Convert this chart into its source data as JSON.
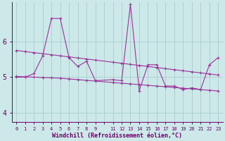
{
  "xlabel": "Windchill (Refroidissement éolien,°C)",
  "bg_color": "#cce8e8",
  "line_color": "#993399",
  "grid_color": "#aacccc",
  "axis_color": "#660066",
  "tick_color": "#660066",
  "xlim": [
    -0.5,
    23.5
  ],
  "ylim": [
    3.75,
    7.1
  ],
  "yticks": [
    4,
    5,
    6
  ],
  "xtick_labels": [
    "0",
    "1",
    "2",
    "3",
    "4",
    "5",
    "6",
    "7",
    "8",
    "9",
    "",
    "11",
    "12",
    "13",
    "14",
    "15",
    "16",
    "17",
    "18",
    "19",
    "20",
    "21",
    "22",
    "23"
  ],
  "line1_x": [
    0,
    1,
    2,
    3,
    4,
    5,
    6,
    7,
    8,
    9,
    11,
    12,
    13,
    14,
    15,
    16,
    17,
    18,
    19,
    20,
    21,
    22,
    23
  ],
  "line1_y": [
    5.0,
    5.0,
    5.1,
    5.6,
    6.65,
    6.65,
    5.55,
    5.3,
    5.45,
    4.9,
    4.93,
    4.9,
    7.05,
    4.62,
    5.35,
    5.35,
    4.75,
    4.75,
    4.65,
    4.7,
    4.65,
    5.35,
    5.55
  ],
  "line2_x": [
    0,
    1,
    2,
    3,
    4,
    5,
    6,
    7,
    8,
    9,
    11,
    12,
    13,
    14,
    15,
    16,
    17,
    18,
    19,
    20,
    21,
    22,
    23
  ],
  "line2_y": [
    5.75,
    5.72,
    5.69,
    5.66,
    5.63,
    5.6,
    5.57,
    5.54,
    5.51,
    5.48,
    5.42,
    5.39,
    5.36,
    5.33,
    5.3,
    5.27,
    5.24,
    5.21,
    5.18,
    5.15,
    5.12,
    5.09,
    5.06
  ],
  "line3_x": [
    0,
    1,
    2,
    3,
    4,
    5,
    6,
    7,
    8,
    9,
    11,
    12,
    13,
    14,
    15,
    16,
    17,
    18,
    19,
    20,
    21,
    22,
    23
  ],
  "line3_y": [
    5.02,
    5.01,
    5.0,
    4.99,
    4.98,
    4.97,
    4.95,
    4.93,
    4.91,
    4.89,
    4.85,
    4.83,
    4.81,
    4.79,
    4.77,
    4.75,
    4.73,
    4.71,
    4.69,
    4.67,
    4.65,
    4.63,
    4.61
  ]
}
